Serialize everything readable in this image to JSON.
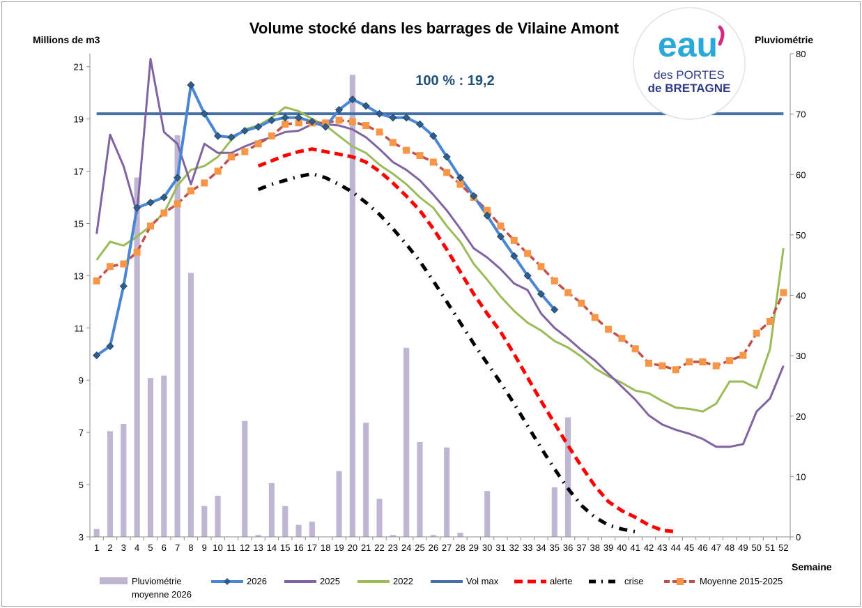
{
  "chart_data": {
    "type": "line",
    "title": "Volume stocké dans les barrages de Vilaine Amont",
    "ylabel": "Millions de m3",
    "y2label": "Pluviométrie",
    "xlabel": "Semaine",
    "ylim": [
      3,
      21.5
    ],
    "y2lim": [
      0,
      80
    ],
    "yticks": [
      3,
      5,
      7,
      9,
      11,
      13,
      15,
      17,
      19,
      21
    ],
    "y2ticks": [
      0,
      10,
      20,
      30,
      40,
      50,
      60,
      70,
      80
    ],
    "weeks": [
      1,
      2,
      3,
      4,
      5,
      6,
      7,
      8,
      9,
      10,
      11,
      12,
      13,
      14,
      15,
      16,
      17,
      18,
      19,
      20,
      21,
      22,
      23,
      24,
      25,
      26,
      27,
      28,
      29,
      30,
      31,
      32,
      33,
      34,
      35,
      36,
      37,
      38,
      39,
      40,
      41,
      42,
      43,
      44,
      45,
      46,
      47,
      48,
      49,
      50,
      51,
      52
    ],
    "annotation": "100 % : 19,2",
    "grid": false,
    "legend_position": "bottom",
    "rain": {
      "name": "Pluviométrie moyenne 2026",
      "color": "#bfb6d4",
      "values": [
        1.3,
        17.5,
        18.7,
        59.5,
        26.3,
        26.7,
        66.5,
        43.7,
        5.1,
        6.8,
        0,
        19.2,
        0.3,
        8.9,
        5.1,
        2,
        2.5,
        0,
        10.9,
        76.5,
        18.9,
        6.3,
        0.3,
        31.3,
        15.7,
        0.3,
        14.8,
        0.7,
        0,
        7.6,
        0,
        0,
        0,
        0,
        8.2,
        19.8
      ]
    },
    "series": [
      {
        "name": "2026",
        "color": "#4a86d4",
        "values": [
          9.95,
          10.3,
          12.6,
          15.6,
          15.8,
          16.0,
          16.75,
          20.3,
          19.2,
          18.35,
          18.3,
          18.55,
          18.7,
          18.95,
          19.05,
          19.05,
          18.9,
          18.7,
          19.35,
          19.75,
          19.5,
          19.2,
          19.05,
          19.05,
          18.8,
          18.35,
          17.55,
          16.75,
          16.05,
          15.3,
          14.5,
          13.75,
          13.0,
          12.3,
          11.7
        ]
      },
      {
        "name": "2025",
        "color": "#8064a2",
        "values": [
          14.6,
          18.4,
          17.2,
          15.4,
          21.3,
          18.5,
          18.05,
          16.5,
          18.05,
          17.7,
          17.7,
          17.95,
          18.15,
          18.3,
          18.5,
          18.55,
          18.8,
          18.8,
          18.75,
          18.6,
          18.3,
          17.85,
          17.35,
          17.05,
          16.65,
          16.1,
          15.5,
          14.8,
          14.05,
          13.7,
          13.25,
          12.7,
          12.45,
          11.55,
          11.0,
          10.6,
          10.15,
          9.75,
          9.25,
          8.75,
          8.25,
          7.65,
          7.3,
          7.1,
          6.95,
          6.75,
          6.45,
          6.45,
          6.55,
          7.8,
          8.3,
          9.55
        ]
      },
      {
        "name": "2022",
        "color": "#9bbb59",
        "values": [
          13.6,
          14.3,
          14.15,
          14.5,
          14.9,
          15.4,
          16.45,
          17.05,
          17.2,
          17.55,
          18.2,
          18.6,
          18.75,
          19.05,
          19.45,
          19.3,
          19.0,
          18.75,
          18.35,
          17.95,
          17.7,
          17.25,
          16.9,
          16.5,
          16.0,
          15.6,
          14.9,
          14.3,
          13.45,
          12.85,
          12.2,
          11.65,
          11.2,
          10.9,
          10.5,
          10.25,
          9.9,
          9.45,
          9.15,
          8.9,
          8.6,
          8.5,
          8.2,
          7.95,
          7.9,
          7.8,
          8.1,
          8.95,
          8.95,
          8.7,
          10.2,
          14.05
        ]
      },
      {
        "name": "Vol max",
        "color": "#4472a8",
        "values": [
          19.2,
          19.2,
          19.2,
          19.2,
          19.2,
          19.2,
          19.2,
          19.2,
          19.2,
          19.2,
          19.2,
          19.2,
          19.2,
          19.2,
          19.2,
          19.2,
          19.2,
          19.2,
          19.2,
          19.2,
          19.2,
          19.2,
          19.2,
          19.2,
          19.2,
          19.2,
          19.2,
          19.2,
          19.2,
          19.2,
          19.2,
          19.2,
          19.2,
          19.2,
          19.2,
          19.2,
          19.2,
          19.2,
          19.2,
          19.2,
          19.2,
          19.2,
          19.2,
          19.2,
          19.2,
          19.2,
          19.2,
          19.2,
          19.2,
          19.2,
          19.2,
          19.2
        ]
      },
      {
        "name": "alerte",
        "color": "#ff0000",
        "start_week": 13,
        "values": [
          17.2,
          17.4,
          17.6,
          17.75,
          17.85,
          17.75,
          17.65,
          17.55,
          17.35,
          17.0,
          16.55,
          16.05,
          15.5,
          14.8,
          14.0,
          13.15,
          12.3,
          11.55,
          10.85,
          10.0,
          9.1,
          8.2,
          7.35,
          6.5,
          5.7,
          4.95,
          4.35,
          4.0,
          3.75,
          3.45,
          3.25,
          3.2
        ]
      },
      {
        "name": "crise",
        "color": "#000000",
        "start_week": 13,
        "values": [
          16.3,
          16.5,
          16.65,
          16.8,
          16.9,
          16.75,
          16.5,
          16.2,
          15.8,
          15.35,
          14.8,
          14.2,
          13.55,
          12.8,
          12.0,
          11.2,
          10.4,
          9.65,
          8.9,
          8.1,
          7.25,
          6.4,
          5.6,
          4.85,
          4.2,
          3.75,
          3.45,
          3.3,
          3.2
        ]
      },
      {
        "name": "Moyenne 2015-2025",
        "color": "#c0504d",
        "marker_color": "#f79646",
        "values": [
          12.8,
          13.35,
          13.45,
          13.9,
          14.9,
          15.4,
          15.75,
          16.25,
          16.55,
          17.0,
          17.55,
          17.75,
          18.05,
          18.35,
          18.8,
          18.85,
          18.85,
          18.85,
          18.95,
          18.9,
          18.75,
          18.5,
          18.1,
          17.8,
          17.6,
          17.35,
          16.95,
          16.5,
          16.0,
          15.5,
          14.9,
          14.35,
          13.85,
          13.35,
          12.8,
          12.35,
          11.95,
          11.4,
          10.95,
          10.6,
          10.2,
          9.65,
          9.55,
          9.4,
          9.7,
          9.7,
          9.55,
          9.75,
          9.95,
          10.8,
          11.25,
          12.35
        ]
      }
    ]
  },
  "logo": {
    "brand": "eau",
    "line1": "des PORTES",
    "line2": "de BRETAGNE",
    "colors": {
      "blue": "#2aa8d8",
      "pink": "#d6287f",
      "navy": "#2e3a87"
    }
  }
}
